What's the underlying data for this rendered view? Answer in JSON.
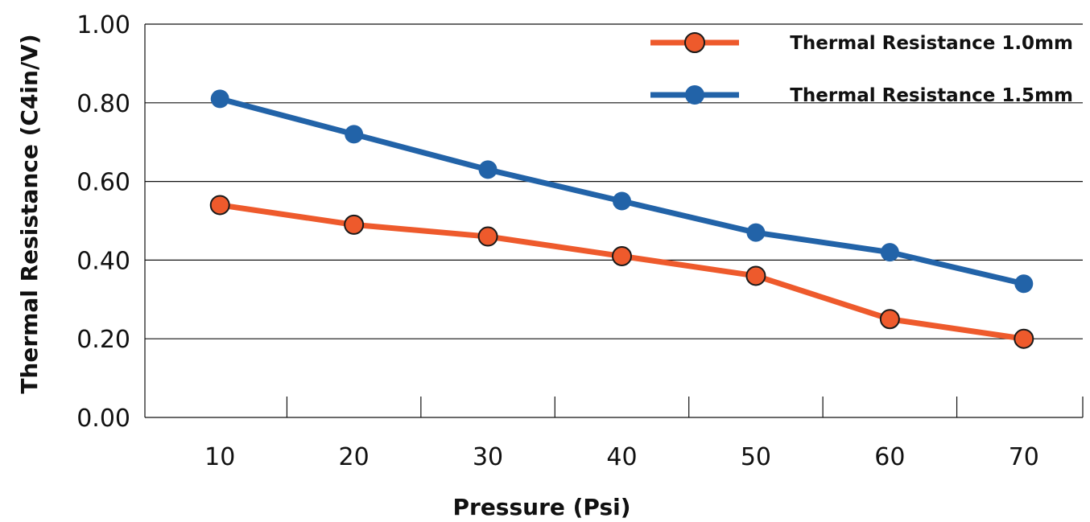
{
  "chart_data": {
    "type": "line",
    "title": "",
    "xlabel": "Pressure (Psi)",
    "ylabel": "Thermal Resistance (C4in/V)",
    "categories": [
      "10",
      "20",
      "30",
      "40",
      "50",
      "60",
      "70"
    ],
    "y_ticks": [
      "0.00",
      "0.20",
      "0.40",
      "0.60",
      "0.80",
      "1.00"
    ],
    "ylim": [
      0,
      1.0
    ],
    "grid": true,
    "legend_position": "top-right",
    "series": [
      {
        "name": "Thermal Resistance 1.0mm",
        "color": "#EE5A2C",
        "values": [
          0.54,
          0.49,
          0.46,
          0.41,
          0.36,
          0.25,
          0.2
        ]
      },
      {
        "name": "Thermal Resistance 1.5mm",
        "color": "#2263A8",
        "values": [
          0.81,
          0.72,
          0.63,
          0.55,
          0.47,
          0.42,
          0.34
        ]
      }
    ]
  }
}
